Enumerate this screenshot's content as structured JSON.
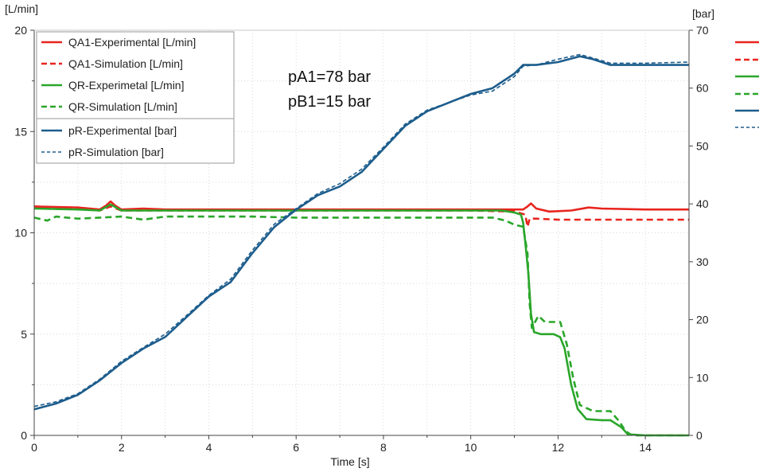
{
  "chart_data": {
    "type": "line",
    "title": "",
    "xlabel": "Time [s]",
    "ylabel_left": "[L/min]",
    "ylabel_right": "[bar]",
    "xlim": [
      0,
      15
    ],
    "ylim_left": [
      0,
      20
    ],
    "ylim_right": [
      0,
      70
    ],
    "x_ticks": [
      0,
      2,
      4,
      6,
      8,
      10,
      12,
      14
    ],
    "y_ticks_left": [
      0,
      5,
      10,
      15,
      20
    ],
    "y_ticks_right": [
      0,
      10,
      20,
      30,
      40,
      50,
      60,
      70
    ],
    "grid": true,
    "legend_position": "top-left",
    "annotations": [
      "pA1=78 bar",
      "pB1=15 bar"
    ],
    "series": [
      {
        "name": "QA1-Experimental [L/min]",
        "axis": "left",
        "color": "#e8241e",
        "dash": "solid",
        "points": [
          [
            0,
            11.3
          ],
          [
            1.0,
            11.25
          ],
          [
            1.5,
            11.15
          ],
          [
            1.65,
            11.35
          ],
          [
            1.75,
            11.55
          ],
          [
            1.85,
            11.35
          ],
          [
            2.0,
            11.15
          ],
          [
            2.5,
            11.2
          ],
          [
            3.0,
            11.15
          ],
          [
            5,
            11.15
          ],
          [
            8,
            11.15
          ],
          [
            10,
            11.15
          ],
          [
            10.8,
            11.15
          ],
          [
            11.2,
            11.15
          ],
          [
            11.3,
            11.3
          ],
          [
            11.38,
            11.45
          ],
          [
            11.5,
            11.2
          ],
          [
            11.8,
            11.05
          ],
          [
            12.3,
            11.1
          ],
          [
            12.7,
            11.25
          ],
          [
            13.0,
            11.2
          ],
          [
            14,
            11.15
          ],
          [
            15,
            11.15
          ]
        ]
      },
      {
        "name": "QA1-Simulation [L/min]",
        "axis": "left",
        "color": "#e8241e",
        "dash": "dashed",
        "points": [
          [
            0,
            11.3
          ],
          [
            1.0,
            11.2
          ],
          [
            1.5,
            11.1
          ],
          [
            1.75,
            11.3
          ],
          [
            2.0,
            11.1
          ],
          [
            3,
            11.1
          ],
          [
            5,
            11.1
          ],
          [
            8,
            11.1
          ],
          [
            10,
            11.1
          ],
          [
            11.0,
            11.05
          ],
          [
            11.25,
            10.9
          ],
          [
            11.3,
            10.3
          ],
          [
            11.35,
            10.7
          ],
          [
            11.5,
            10.7
          ],
          [
            12,
            10.65
          ],
          [
            13,
            10.65
          ],
          [
            14,
            10.65
          ],
          [
            15,
            10.65
          ]
        ]
      },
      {
        "name": "QR-Experimetal [L/min]",
        "axis": "left",
        "color": "#2aa62a",
        "dash": "solid",
        "points": [
          [
            0,
            11.2
          ],
          [
            1.0,
            11.15
          ],
          [
            1.5,
            11.1
          ],
          [
            1.75,
            11.4
          ],
          [
            2.0,
            11.1
          ],
          [
            3,
            11.1
          ],
          [
            5,
            11.1
          ],
          [
            8,
            11.1
          ],
          [
            10,
            11.1
          ],
          [
            10.7,
            11.1
          ],
          [
            11.0,
            11.0
          ],
          [
            11.15,
            10.9
          ],
          [
            11.2,
            10.5
          ],
          [
            11.25,
            9.5
          ],
          [
            11.32,
            8.0
          ],
          [
            11.38,
            6.0
          ],
          [
            11.45,
            5.1
          ],
          [
            11.6,
            5.0
          ],
          [
            11.9,
            5.0
          ],
          [
            12.05,
            4.85
          ],
          [
            12.15,
            4.3
          ],
          [
            12.3,
            2.5
          ],
          [
            12.45,
            1.3
          ],
          [
            12.65,
            0.8
          ],
          [
            13.0,
            0.75
          ],
          [
            13.2,
            0.75
          ],
          [
            13.45,
            0.4
          ],
          [
            13.6,
            0.05
          ],
          [
            14,
            0.0
          ],
          [
            15,
            0.0
          ]
        ]
      },
      {
        "name": "QR-Simulation [L/min]",
        "axis": "left",
        "color": "#2aa62a",
        "dash": "dashed",
        "points": [
          [
            0,
            10.75
          ],
          [
            0.3,
            10.6
          ],
          [
            0.5,
            10.8
          ],
          [
            1.0,
            10.7
          ],
          [
            1.5,
            10.75
          ],
          [
            2.0,
            10.8
          ],
          [
            2.5,
            10.65
          ],
          [
            3.0,
            10.8
          ],
          [
            4,
            10.8
          ],
          [
            5,
            10.8
          ],
          [
            6,
            10.75
          ],
          [
            7,
            10.75
          ],
          [
            8,
            10.75
          ],
          [
            9,
            10.75
          ],
          [
            10,
            10.75
          ],
          [
            10.5,
            10.75
          ],
          [
            10.8,
            10.6
          ],
          [
            11.0,
            10.4
          ],
          [
            11.2,
            10.3
          ],
          [
            11.3,
            9.0
          ],
          [
            11.35,
            6.5
          ],
          [
            11.4,
            5.3
          ],
          [
            11.45,
            5.5
          ],
          [
            11.55,
            5.9
          ],
          [
            11.7,
            5.6
          ],
          [
            12.05,
            5.6
          ],
          [
            12.2,
            4.5
          ],
          [
            12.35,
            2.8
          ],
          [
            12.5,
            1.5
          ],
          [
            12.8,
            1.2
          ],
          [
            13.2,
            1.2
          ],
          [
            13.4,
            0.7
          ],
          [
            13.55,
            0.2
          ],
          [
            13.7,
            0.0
          ],
          [
            14,
            0.0
          ],
          [
            15,
            0.0
          ]
        ]
      },
      {
        "name": "pR-Experimental [bar]",
        "axis": "right",
        "color": "#1d5d8c",
        "dash": "solid",
        "points": [
          [
            0,
            4.5
          ],
          [
            0.5,
            5.5
          ],
          [
            1.0,
            7.0
          ],
          [
            1.5,
            9.5
          ],
          [
            2.0,
            12.5
          ],
          [
            2.5,
            15.0
          ],
          [
            3.0,
            17.0
          ],
          [
            3.5,
            20.5
          ],
          [
            4.0,
            24.0
          ],
          [
            4.5,
            26.5
          ],
          [
            5.0,
            31.5
          ],
          [
            5.5,
            36.0
          ],
          [
            6.0,
            39.0
          ],
          [
            6.5,
            41.5
          ],
          [
            7.0,
            43.0
          ],
          [
            7.5,
            45.5
          ],
          [
            8.0,
            49.5
          ],
          [
            8.5,
            53.5
          ],
          [
            9.0,
            56.0
          ],
          [
            9.5,
            57.5
          ],
          [
            10.0,
            59.0
          ],
          [
            10.5,
            60.0
          ],
          [
            11.0,
            62.5
          ],
          [
            11.2,
            64.0
          ],
          [
            11.5,
            64.0
          ],
          [
            12.0,
            64.5
          ],
          [
            12.5,
            65.5
          ],
          [
            12.8,
            65.0
          ],
          [
            13.2,
            64.0
          ],
          [
            14,
            64.0
          ],
          [
            15,
            64.0
          ]
        ]
      },
      {
        "name": "pR-Simulation [bar]",
        "axis": "right",
        "color": "#1d5d8c",
        "dash": "dashed",
        "points": [
          [
            0,
            5.0
          ],
          [
            0.5,
            5.8
          ],
          [
            1.0,
            7.2
          ],
          [
            1.5,
            9.7
          ],
          [
            2.0,
            12.8
          ],
          [
            2.5,
            15.2
          ],
          [
            3.0,
            17.5
          ],
          [
            3.5,
            20.8
          ],
          [
            4.0,
            24.2
          ],
          [
            4.5,
            27.0
          ],
          [
            5.0,
            32.0
          ],
          [
            5.5,
            36.5
          ],
          [
            6.0,
            39.2
          ],
          [
            6.5,
            41.8
          ],
          [
            7.0,
            43.5
          ],
          [
            7.5,
            46.0
          ],
          [
            8.0,
            49.8
          ],
          [
            8.5,
            53.8
          ],
          [
            9.0,
            56.2
          ],
          [
            9.5,
            57.5
          ],
          [
            10.0,
            58.8
          ],
          [
            10.5,
            59.5
          ],
          [
            11.0,
            62.0
          ],
          [
            11.2,
            63.8
          ],
          [
            11.5,
            64.0
          ],
          [
            12.0,
            65.0
          ],
          [
            12.5,
            65.8
          ],
          [
            12.8,
            65.2
          ],
          [
            13.2,
            64.3
          ],
          [
            14,
            64.3
          ],
          [
            15,
            64.5
          ]
        ]
      }
    ]
  }
}
